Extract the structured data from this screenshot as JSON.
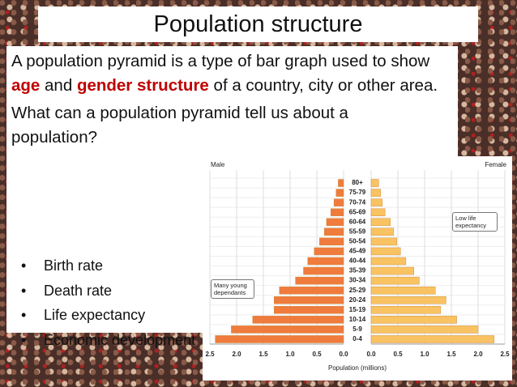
{
  "slide": {
    "title": "Population structure",
    "paragraph_1": [
      "A population pyramid is a type of bar graph used to show ",
      "age",
      " and ",
      "gender structure",
      " of a country, city or other area."
    ],
    "paragraph_2": "What can a population pyramid tell us about a population?",
    "bullets": [
      "Birth rate",
      "Death rate",
      "Life expectancy",
      "Economic development"
    ]
  },
  "chart_data": {
    "type": "pyramid",
    "categories": [
      "0-4",
      "5-9",
      "10-14",
      "15-19",
      "20-24",
      "25-29",
      "30-34",
      "35-39",
      "40-44",
      "45-49",
      "50-54",
      "55-59",
      "60-64",
      "65-69",
      "70-74",
      "75-79",
      "80+"
    ],
    "series": [
      {
        "name": "Male",
        "color": "#ef7b3d",
        "values": [
          2.4,
          2.1,
          1.7,
          1.3,
          1.3,
          1.2,
          0.9,
          0.75,
          0.67,
          0.55,
          0.45,
          0.36,
          0.32,
          0.24,
          0.18,
          0.14,
          0.1
        ]
      },
      {
        "name": "Female",
        "color": "#f9c262",
        "values": [
          2.3,
          2.0,
          1.6,
          1.3,
          1.4,
          1.2,
          0.9,
          0.8,
          0.65,
          0.55,
          0.48,
          0.42,
          0.36,
          0.26,
          0.21,
          0.18,
          0.14
        ]
      }
    ],
    "xlim": [
      0,
      2.5
    ],
    "xticks": [
      {
        "value": 0,
        "label": "0.0"
      },
      {
        "value": 0.5,
        "label": "0.5"
      },
      {
        "value": 1,
        "label": "1.0"
      },
      {
        "value": 1.5,
        "label": "1.5"
      },
      {
        "value": 2,
        "label": "2.0"
      },
      {
        "value": 2.5,
        "label": "2.5"
      }
    ],
    "xlabel": "Population (millions)",
    "annotations": [
      "Many young dependants",
      "Low life expectancy"
    ],
    "grid": true
  }
}
